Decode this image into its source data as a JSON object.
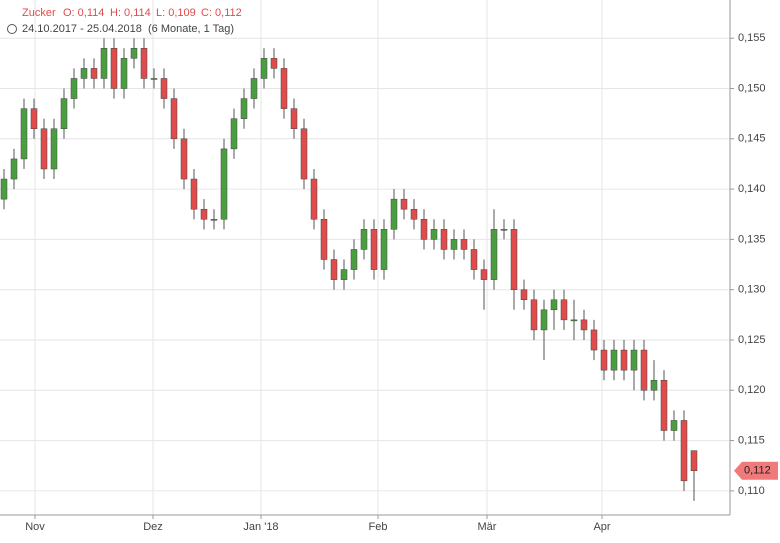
{
  "chart_data": {
    "type": "candlestick",
    "header": {
      "name": "Zucker",
      "open_label": "O: 0,114",
      "high_label": "H: 0,114",
      "low_label": "L: 0,109",
      "close_label": "C: 0,112",
      "range": "24.10.2017 - 25.04.2018",
      "period": "(6 Monate, 1 Tag)"
    },
    "open": [
      0.139,
      0.141,
      0.143,
      0.148,
      0.146,
      0.142,
      0.146,
      0.149,
      0.151,
      0.152,
      0.151,
      0.154,
      0.15,
      0.153,
      0.154,
      0.151,
      0.151,
      0.149,
      0.145,
      0.141,
      0.138,
      0.137,
      0.137,
      0.144,
      0.147,
      0.149,
      0.151,
      0.153,
      0.152,
      0.148,
      0.146,
      0.141,
      0.137,
      0.133,
      0.131,
      0.132,
      0.134,
      0.136,
      0.132,
      0.136,
      0.139,
      0.138,
      0.137,
      0.135,
      0.136,
      0.134,
      0.135,
      0.134,
      0.132,
      0.131,
      0.136,
      0.136,
      0.13,
      0.129,
      0.126,
      0.128,
      0.129,
      0.127,
      0.127,
      0.126,
      0.124,
      0.122,
      0.124,
      0.122,
      0.124,
      0.12,
      0.121,
      0.116,
      0.117,
      0.114
    ],
    "high": [
      0.142,
      0.144,
      0.149,
      0.149,
      0.147,
      0.147,
      0.15,
      0.152,
      0.153,
      0.153,
      0.155,
      0.155,
      0.154,
      0.155,
      0.155,
      0.152,
      0.152,
      0.15,
      0.146,
      0.142,
      0.139,
      0.138,
      0.145,
      0.148,
      0.15,
      0.152,
      0.154,
      0.154,
      0.153,
      0.149,
      0.147,
      0.142,
      0.138,
      0.134,
      0.133,
      0.135,
      0.137,
      0.137,
      0.137,
      0.14,
      0.14,
      0.139,
      0.138,
      0.137,
      0.137,
      0.136,
      0.136,
      0.135,
      0.133,
      0.138,
      0.137,
      0.137,
      0.131,
      0.13,
      0.129,
      0.13,
      0.13,
      0.129,
      0.128,
      0.127,
      0.125,
      0.125,
      0.125,
      0.125,
      0.125,
      0.123,
      0.122,
      0.118,
      0.118,
      0.114
    ],
    "low": [
      0.138,
      0.14,
      0.142,
      0.145,
      0.141,
      0.141,
      0.145,
      0.148,
      0.15,
      0.15,
      0.15,
      0.149,
      0.149,
      0.152,
      0.15,
      0.15,
      0.148,
      0.144,
      0.14,
      0.137,
      0.136,
      0.136,
      0.136,
      0.143,
      0.146,
      0.148,
      0.15,
      0.151,
      0.147,
      0.145,
      0.14,
      0.136,
      0.132,
      0.13,
      0.13,
      0.131,
      0.133,
      0.131,
      0.131,
      0.135,
      0.137,
      0.136,
      0.134,
      0.134,
      0.133,
      0.133,
      0.133,
      0.131,
      0.128,
      0.13,
      0.135,
      0.128,
      0.128,
      0.125,
      0.123,
      0.126,
      0.126,
      0.125,
      0.125,
      0.123,
      0.121,
      0.121,
      0.121,
      0.12,
      0.119,
      0.119,
      0.115,
      0.115,
      0.11,
      0.109
    ],
    "close": [
      0.141,
      0.143,
      0.148,
      0.146,
      0.142,
      0.146,
      0.149,
      0.151,
      0.152,
      0.151,
      0.154,
      0.15,
      0.153,
      0.154,
      0.151,
      0.151,
      0.149,
      0.145,
      0.141,
      0.138,
      0.137,
      0.137,
      0.144,
      0.147,
      0.149,
      0.151,
      0.153,
      0.152,
      0.148,
      0.146,
      0.141,
      0.137,
      0.133,
      0.131,
      0.132,
      0.134,
      0.136,
      0.132,
      0.136,
      0.139,
      0.138,
      0.137,
      0.135,
      0.136,
      0.134,
      0.135,
      0.134,
      0.132,
      0.131,
      0.136,
      0.136,
      0.13,
      0.129,
      0.126,
      0.128,
      0.129,
      0.127,
      0.127,
      0.126,
      0.124,
      0.122,
      0.124,
      0.122,
      0.124,
      0.12,
      0.121,
      0.116,
      0.117,
      0.111,
      0.112
    ],
    "up_color": "#4a9e3f",
    "down_color": "#e04b4b",
    "xlim": [
      -0.4,
      72.6
    ],
    "xticks": [
      {
        "value": 3.1,
        "label": "Nov"
      },
      {
        "value": 14.9,
        "label": "Dez"
      },
      {
        "value": 25.7,
        "label": "Jan '18"
      },
      {
        "value": 37.4,
        "label": "Feb"
      },
      {
        "value": 48.3,
        "label": "Mär"
      },
      {
        "value": 59.8,
        "label": "Apr"
      }
    ],
    "ylim": [
      0.1076,
      0.1588
    ],
    "yticks": [
      {
        "value": 0.11,
        "label": "0,110"
      },
      {
        "value": 0.115,
        "label": "0,115"
      },
      {
        "value": 0.12,
        "label": "0,120"
      },
      {
        "value": 0.125,
        "label": "0,125"
      },
      {
        "value": 0.13,
        "label": "0,130"
      },
      {
        "value": 0.135,
        "label": "0,135"
      },
      {
        "value": 0.14,
        "label": "0,140"
      },
      {
        "value": 0.145,
        "label": "0,145"
      },
      {
        "value": 0.15,
        "label": "0,150"
      },
      {
        "value": 0.155,
        "label": "0,155"
      }
    ],
    "last": {
      "value": 0.112,
      "label": "0,112"
    },
    "grid": true
  }
}
